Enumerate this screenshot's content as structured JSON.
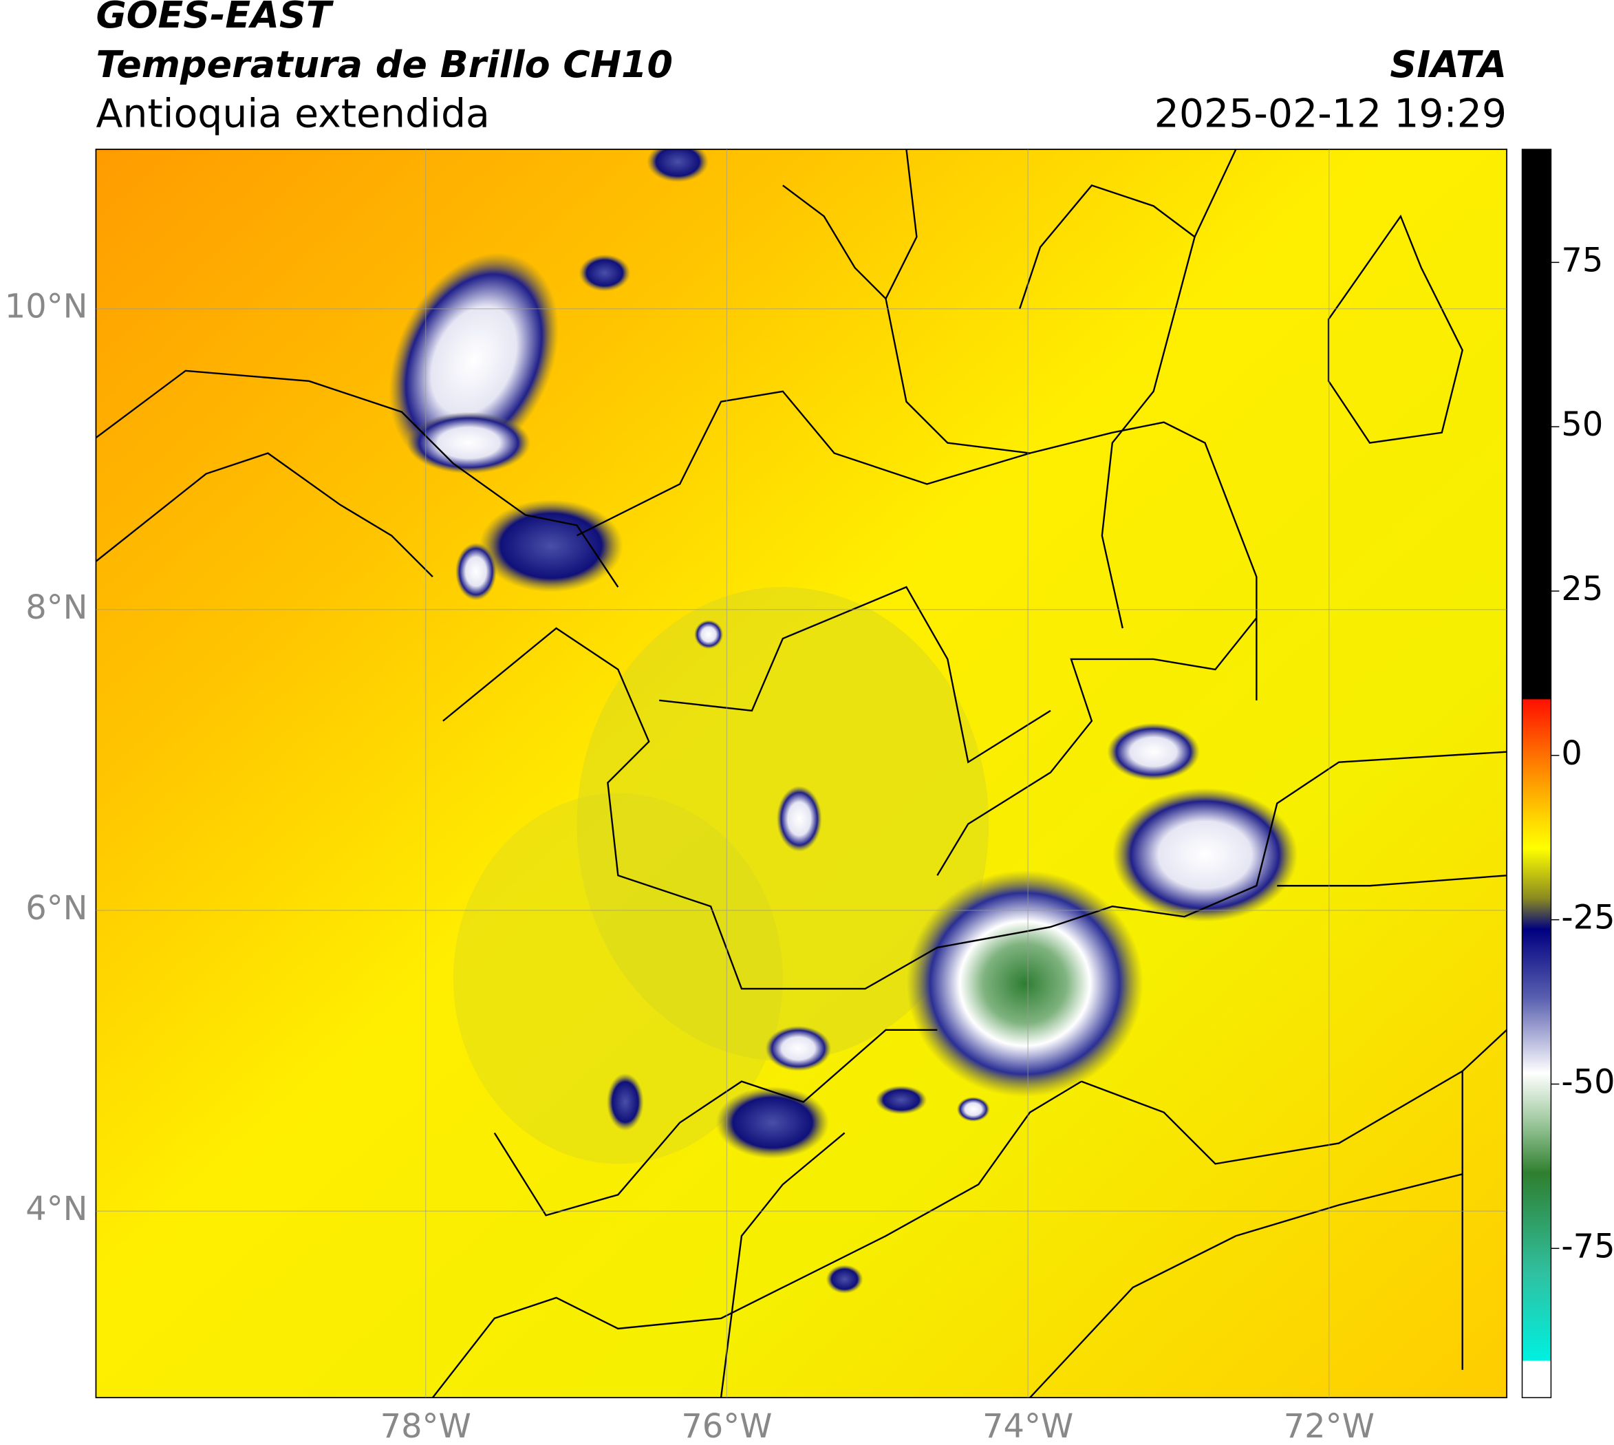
{
  "header": {
    "title": "GOES-EAST",
    "subtitle": "Temperatura de Brillo CH10",
    "region": "Antioquia extendida",
    "source": "SIATA",
    "datetime": "2025-02-12 19:29"
  },
  "map": {
    "lonlim": [
      -80.19,
      -70.82
    ],
    "latlim": [
      2.76,
      11.06
    ],
    "lat_ticks": [
      {
        "value": 10,
        "label": "10°N"
      },
      {
        "value": 8,
        "label": "8°N"
      },
      {
        "value": 6,
        "label": "6°N"
      },
      {
        "value": 4,
        "label": "4°N"
      }
    ],
    "lon_ticks": [
      {
        "value": -78,
        "label": "78°W"
      },
      {
        "value": -76,
        "label": "76°W"
      },
      {
        "value": -74,
        "label": "74°W"
      },
      {
        "value": -72,
        "label": "72°W"
      }
    ]
  },
  "colorbar": {
    "lim": [
      -97.7,
      92.2
    ],
    "ticks": [
      75,
      50,
      25,
      0,
      -25,
      -50,
      -75
    ]
  }
}
